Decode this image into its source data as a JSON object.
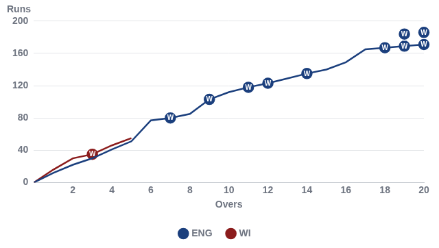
{
  "chart_data": {
    "type": "line",
    "x_label": "Overs",
    "y_label": "Runs",
    "xlim": [
      0,
      20
    ],
    "xticks": [
      2,
      4,
      6,
      8,
      10,
      12,
      14,
      16,
      18,
      20
    ],
    "ylim": [
      0,
      200
    ],
    "yticks": [
      0,
      40,
      80,
      120,
      160,
      200
    ],
    "grid": "y",
    "legend": "bottom",
    "series": [
      {
        "name": "ENG",
        "color": "#1b3f7d",
        "x": [
          0,
          1,
          2,
          3,
          4,
          5,
          6,
          7,
          8,
          9,
          10,
          11,
          12,
          13,
          14,
          15,
          16,
          17,
          18,
          19,
          20
        ],
        "values": [
          0,
          12,
          22,
          30,
          41,
          51,
          77,
          80,
          85,
          103,
          112,
          118,
          123,
          129,
          135,
          140,
          149,
          165,
          167,
          169,
          171
        ],
        "wickets": {
          "label": "W",
          "x": [
            7,
            9,
            11,
            12,
            14,
            18,
            19,
            19,
            20,
            20
          ],
          "y": [
            80,
            103,
            118,
            123,
            135,
            167,
            169,
            184,
            171,
            186
          ]
        }
      },
      {
        "name": "WI",
        "color": "#8b1c1c",
        "x": [
          0,
          1,
          2,
          3,
          4,
          5
        ],
        "values": [
          0,
          16,
          30,
          35,
          46,
          55
        ],
        "wickets": {
          "label": "W",
          "x": [
            3
          ],
          "y": [
            35
          ]
        }
      }
    ]
  }
}
